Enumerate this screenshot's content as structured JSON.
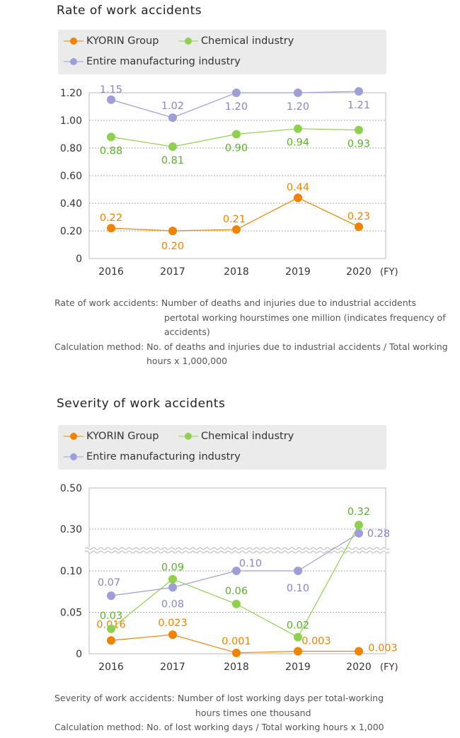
{
  "colors": {
    "kyorin": "#f08300",
    "chemical": "#8fd14f",
    "chemical_label": "#5aaf2a",
    "manufacturing": "#9e9ed8",
    "manufacturing_label": "#8585c8"
  },
  "legend": {
    "kyorin": "KYORIN Group",
    "chemical": "Chemical industry",
    "manufacturing": "Entire manufacturing industry"
  },
  "chart_data": [
    {
      "type": "line",
      "title": "Rate of work accidents",
      "categories": [
        "2016",
        "2017",
        "2018",
        "2019",
        "2020"
      ],
      "x_unit": "(FY)",
      "yticks": [
        "0",
        "0.20",
        "0.40",
        "0.60",
        "0.80",
        "1.00",
        "1.20"
      ],
      "ylim": [
        0,
        1.2
      ],
      "grid": true,
      "series": [
        {
          "name": "KYORIN Group",
          "values": [
            0.22,
            0.2,
            0.21,
            0.44,
            0.23
          ],
          "labels": [
            "0.22",
            "0.20",
            "0.21",
            "0.44",
            "0.23"
          ]
        },
        {
          "name": "Chemical industry",
          "values": [
            0.88,
            0.81,
            0.9,
            0.94,
            0.93
          ],
          "labels": [
            "0.88",
            "0.81",
            "0.90",
            "0.94",
            "0.93"
          ]
        },
        {
          "name": "Entire manufacturing industry",
          "values": [
            1.15,
            1.02,
            1.2,
            1.2,
            1.21
          ],
          "labels": [
            "1.15",
            "1.02",
            "1.20",
            "1.20",
            "1.21"
          ]
        }
      ]
    },
    {
      "type": "line",
      "title": "Severity of work accidents",
      "categories": [
        "2016",
        "2017",
        "2018",
        "2019",
        "2020"
      ],
      "x_unit": "(FY)",
      "yticks": [
        "0",
        "0.05",
        "0.10",
        "0.30",
        "0.50"
      ],
      "ylim": [
        0,
        0.5
      ],
      "axis_break": [
        0.1,
        0.3
      ],
      "grid": true,
      "series": [
        {
          "name": "KYORIN Group",
          "values": [
            0.016,
            0.023,
            0.001,
            0.003,
            0.003
          ],
          "labels": [
            "0.016",
            "0.023",
            "0.001",
            "0.003",
            "0.003"
          ]
        },
        {
          "name": "Chemical industry",
          "values": [
            0.03,
            0.09,
            0.06,
            0.02,
            0.32
          ],
          "labels": [
            "0.03",
            "0.09",
            "0.06",
            "0.02",
            "0.32"
          ]
        },
        {
          "name": "Entire manufacturing industry",
          "values": [
            0.07,
            0.08,
            0.1,
            0.1,
            0.28
          ],
          "labels": [
            "0.07",
            "0.08",
            "0.10",
            "0.10",
            "0.28"
          ]
        }
      ]
    }
  ],
  "notes1": {
    "line1": "Rate of work accidents: Number of deaths and injuries due to industrial accidents",
    "line2": "pertotal working hourstimes one million (indicates frequency of",
    "line3": "accidents)",
    "line4": "Calculation method: No. of deaths and injuries due to industrial accidents / Total working",
    "line5": "hours x 1,000,000"
  },
  "notes2": {
    "line1": "Severity of work accidents: Number of lost working days per total-working",
    "line2": "hours times one thousand",
    "line3": "Calculation method: No. of lost working days / Total working hours x 1,000"
  }
}
